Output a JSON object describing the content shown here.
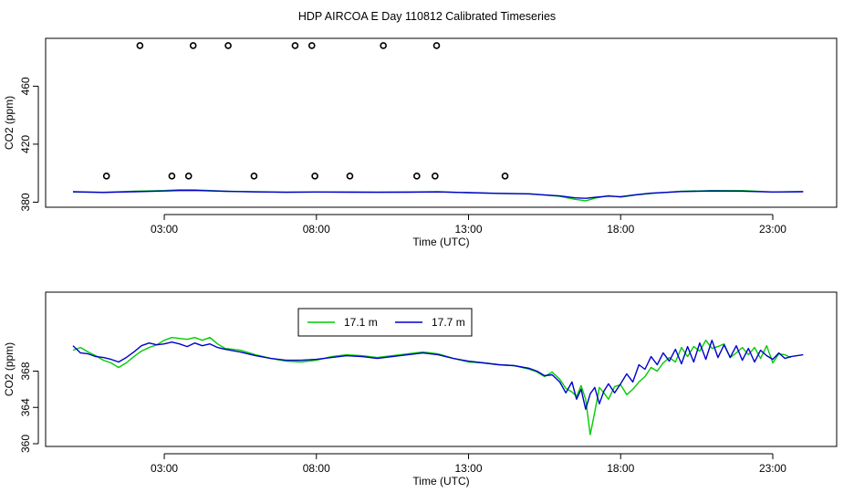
{
  "title": "HDP AIRCOA E  Day 110812  Calibrated Timeseries",
  "colors": {
    "green": "#00cc00",
    "blue": "#0000cc",
    "axis": "#000000"
  },
  "chart_data": [
    {
      "type": "scatter",
      "xlabel": "Time (UTC)",
      "ylabel": "CO2 (ppm)",
      "xticks": [
        {
          "v": 3,
          "label": "03:00"
        },
        {
          "v": 8,
          "label": "08:00"
        },
        {
          "v": 13,
          "label": "13:00"
        },
        {
          "v": 18,
          "label": "18:00"
        },
        {
          "v": 23,
          "label": "23:00"
        }
      ],
      "yticks": [
        {
          "v": 380,
          "label": "380"
        },
        {
          "v": 420,
          "label": "420"
        },
        {
          "v": 460,
          "label": "460"
        }
      ],
      "xlim": [
        -0.9,
        25.1
      ],
      "ylim": [
        376.5,
        493
      ],
      "markers_high": {
        "value": 488,
        "x": [
          2.2,
          3.95,
          5.1,
          7.3,
          7.85,
          10.2,
          11.95
        ]
      },
      "markers_low": {
        "value": 398,
        "x": [
          1.1,
          3.25,
          3.8,
          5.95,
          7.95,
          9.1,
          11.3,
          11.9,
          14.2
        ]
      },
      "series": [
        {
          "color": "green",
          "x": [
            0,
            1,
            2,
            3,
            3.5,
            4,
            5,
            6,
            7,
            8,
            9,
            10,
            11,
            12,
            13,
            14,
            15,
            16,
            16.5,
            16.85,
            17.2,
            17.6,
            18,
            18.5,
            19,
            20,
            21,
            22,
            23,
            24
          ],
          "y": [
            387,
            386.8,
            387.5,
            388,
            388.6,
            388.5,
            387.6,
            387.2,
            386.9,
            387,
            387,
            386.9,
            387,
            387.2,
            386.5,
            386,
            385.8,
            384,
            382,
            381,
            383,
            384.5,
            383.5,
            385,
            386,
            387.5,
            388,
            388,
            387,
            387.3
          ]
        },
        {
          "color": "blue",
          "x": [
            0,
            1,
            2,
            3,
            3.5,
            4,
            5,
            6,
            7,
            8,
            9,
            10,
            11,
            12,
            13,
            14,
            15,
            16,
            16.5,
            16.85,
            17.2,
            17.6,
            18,
            18.5,
            19,
            20,
            21,
            22,
            23,
            24
          ],
          "y": [
            387.2,
            386.7,
            387.2,
            387.7,
            388,
            388.1,
            387.5,
            387.1,
            386.8,
            387,
            386.9,
            386.8,
            386.9,
            387.1,
            386.6,
            386.1,
            385.7,
            384.3,
            383,
            382.7,
            383.4,
            384.2,
            383.8,
            385.1,
            386.2,
            387.3,
            387.7,
            387.6,
            387,
            387.2
          ]
        }
      ]
    },
    {
      "type": "line",
      "xlabel": "Time (UTC)",
      "ylabel": "CO2 (ppm)",
      "xticks": [
        {
          "v": 3,
          "label": "03:00"
        },
        {
          "v": 8,
          "label": "08:00"
        },
        {
          "v": 13,
          "label": "13:00"
        },
        {
          "v": 18,
          "label": "18:00"
        },
        {
          "v": 23,
          "label": "23:00"
        }
      ],
      "yticks": [
        {
          "v": 360,
          "label": "360"
        },
        {
          "v": 364,
          "label": "364"
        },
        {
          "v": 368,
          "label": "368"
        }
      ],
      "xlim": [
        -0.9,
        25.1
      ],
      "ylim": [
        359.7,
        376.7
      ],
      "legend": {
        "placement": "top-center",
        "entries": [
          {
            "label": "17.1 m",
            "color": "green"
          },
          {
            "label": "17.7 m",
            "color": "blue"
          }
        ]
      },
      "series": [
        {
          "name": "17.1 m",
          "color": "green",
          "x": [
            0,
            0.25,
            0.5,
            0.75,
            1,
            1.25,
            1.5,
            1.75,
            2,
            2.25,
            2.5,
            2.75,
            3,
            3.25,
            3.5,
            3.75,
            4,
            4.25,
            4.5,
            4.75,
            5,
            5.5,
            6,
            6.5,
            7,
            7.5,
            8,
            8.5,
            9,
            9.5,
            10,
            10.5,
            11,
            11.5,
            12,
            12.5,
            13,
            13.5,
            14,
            14.5,
            15,
            15.25,
            15.5,
            15.75,
            16,
            16.2,
            16.4,
            16.55,
            16.7,
            16.85,
            17,
            17.15,
            17.3,
            17.45,
            17.6,
            17.8,
            18,
            18.2,
            18.4,
            18.6,
            18.8,
            19,
            19.2,
            19.4,
            19.6,
            19.8,
            20,
            20.2,
            20.4,
            20.6,
            20.8,
            21,
            21.2,
            21.4,
            21.6,
            21.8,
            22,
            22.2,
            22.4,
            22.6,
            22.8,
            23,
            23.2,
            23.4,
            23.6
          ],
          "y": [
            370.3,
            370.6,
            370.1,
            369.7,
            369.2,
            368.9,
            368.4,
            368.9,
            369.6,
            370.2,
            370.6,
            370.9,
            371.4,
            371.7,
            371.6,
            371.5,
            371.7,
            371.4,
            371.7,
            371.0,
            370.5,
            370.3,
            369.8,
            369.4,
            369.1,
            369.0,
            369.2,
            369.6,
            369.8,
            369.7,
            369.5,
            369.7,
            369.9,
            370.1,
            369.9,
            369.4,
            369.0,
            368.9,
            368.7,
            368.6,
            368.2,
            367.9,
            367.4,
            367.9,
            367.1,
            366.1,
            365.7,
            365.2,
            366.4,
            364.9,
            361.0,
            363.5,
            366.2,
            365.6,
            364.9,
            366.3,
            366.5,
            365.4,
            366.0,
            366.8,
            367.4,
            368.4,
            368.0,
            368.9,
            369.5,
            369.0,
            370.6,
            369.6,
            370.7,
            370.2,
            371.4,
            370.5,
            370.7,
            371.0,
            369.5,
            370.0,
            370.6,
            369.8,
            370.6,
            369.4,
            370.8,
            368.9,
            369.9,
            369.8,
            369.5
          ]
        },
        {
          "name": "17.7 m",
          "color": "blue",
          "x": [
            0,
            0.25,
            0.5,
            0.75,
            1,
            1.25,
            1.5,
            1.75,
            2,
            2.25,
            2.5,
            2.75,
            3,
            3.25,
            3.5,
            3.75,
            4,
            4.25,
            4.5,
            4.75,
            5,
            5.5,
            6,
            6.5,
            7,
            7.5,
            8,
            8.5,
            9,
            9.5,
            10,
            10.5,
            11,
            11.5,
            12,
            12.5,
            13,
            13.5,
            14,
            14.5,
            15,
            15.25,
            15.5,
            15.75,
            16,
            16.2,
            16.4,
            16.55,
            16.7,
            16.85,
            17,
            17.15,
            17.3,
            17.45,
            17.6,
            17.8,
            18,
            18.2,
            18.4,
            18.6,
            18.8,
            19,
            19.2,
            19.4,
            19.6,
            19.8,
            20,
            20.2,
            20.4,
            20.6,
            20.8,
            21,
            21.2,
            21.4,
            21.6,
            21.8,
            22,
            22.2,
            22.4,
            22.6,
            22.8,
            23,
            23.2,
            23.4,
            23.6,
            24
          ],
          "y": [
            370.8,
            370.0,
            369.9,
            369.6,
            369.5,
            369.3,
            369.0,
            369.5,
            370.1,
            370.8,
            371.1,
            370.9,
            371.0,
            371.2,
            371.0,
            370.7,
            371.1,
            370.8,
            371.0,
            370.6,
            370.4,
            370.1,
            369.7,
            369.4,
            369.2,
            369.2,
            369.3,
            369.5,
            369.7,
            369.6,
            369.4,
            369.6,
            369.8,
            370.0,
            369.8,
            369.4,
            369.1,
            368.9,
            368.7,
            368.6,
            368.3,
            368.0,
            367.5,
            367.6,
            366.8,
            365.6,
            366.8,
            364.9,
            366.0,
            363.8,
            365.5,
            366.2,
            364.4,
            365.8,
            366.6,
            365.6,
            366.6,
            367.7,
            366.8,
            368.7,
            368.2,
            369.6,
            368.7,
            370.0,
            369.1,
            370.4,
            368.8,
            370.7,
            369.0,
            371.1,
            369.3,
            371.4,
            369.5,
            370.9,
            369.5,
            370.8,
            369.2,
            370.5,
            369.0,
            370.3,
            369.7,
            369.3,
            370.0,
            369.4,
            369.6,
            369.8
          ]
        }
      ]
    }
  ]
}
